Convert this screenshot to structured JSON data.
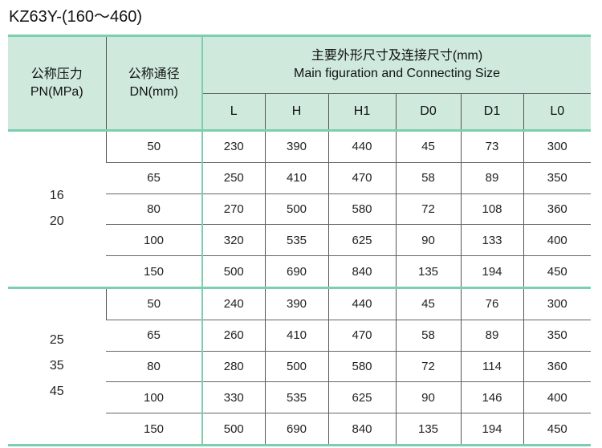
{
  "title": "KZ63Y-(160～460)",
  "header": {
    "pn_cn": "公称压力",
    "pn_en": "PN(MPa)",
    "dn_cn": "公称通径",
    "dn_en": "DN(mm)",
    "dims_cn": "主要外形尺寸及连接尺寸(mm)",
    "dims_en": "Main figuration and Connecting Size",
    "columns": [
      "L",
      "H",
      "H1",
      "D0",
      "D1",
      "L0"
    ]
  },
  "groups": [
    {
      "pn": [
        "16",
        "20"
      ],
      "rows": [
        [
          "50",
          "230",
          "390",
          "440",
          "45",
          "73",
          "300"
        ],
        [
          "65",
          "250",
          "410",
          "470",
          "58",
          "89",
          "350"
        ],
        [
          "80",
          "270",
          "500",
          "580",
          "72",
          "108",
          "360"
        ],
        [
          "100",
          "320",
          "535",
          "625",
          "90",
          "133",
          "400"
        ],
        [
          "150",
          "500",
          "690",
          "840",
          "135",
          "194",
          "450"
        ]
      ]
    },
    {
      "pn": [
        "25",
        "35",
        "45"
      ],
      "rows": [
        [
          "50",
          "240",
          "390",
          "440",
          "45",
          "76",
          "300"
        ],
        [
          "65",
          "260",
          "410",
          "470",
          "58",
          "89",
          "350"
        ],
        [
          "80",
          "280",
          "500",
          "580",
          "72",
          "114",
          "360"
        ],
        [
          "100",
          "330",
          "535",
          "625",
          "90",
          "146",
          "400"
        ],
        [
          "150",
          "500",
          "690",
          "840",
          "135",
          "194",
          "450"
        ]
      ]
    }
  ]
}
